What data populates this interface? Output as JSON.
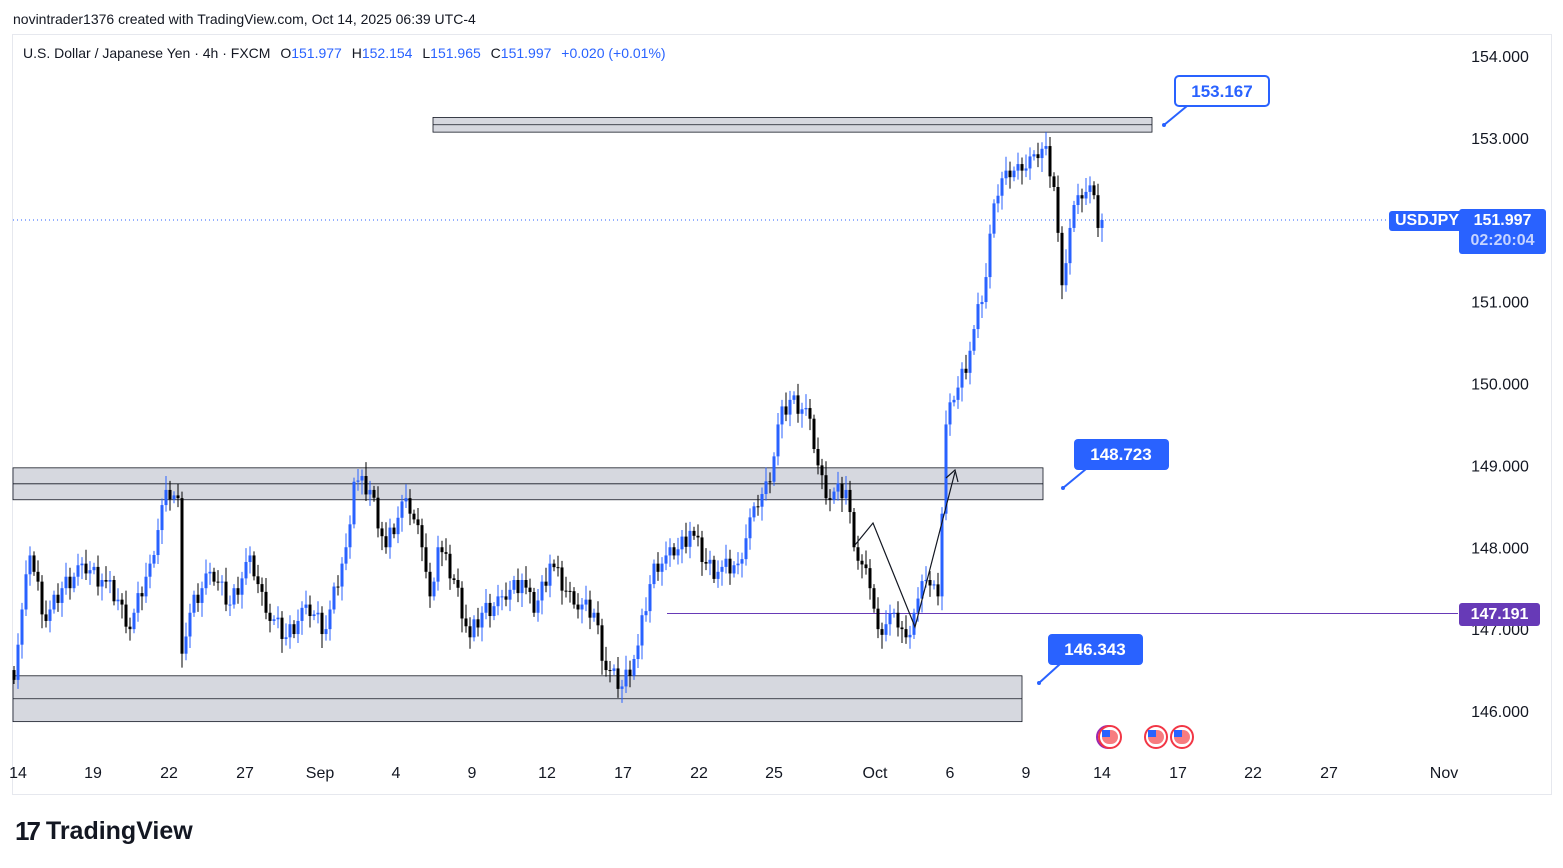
{
  "credit": "novintrader1376 created with TradingView.com, Oct 14, 2025 06:39 UTC-4",
  "legend": {
    "title": "U.S. Dollar / Japanese Yen · 4h · FXCM",
    "o_label": "O",
    "o": "151.977",
    "h_label": "H",
    "h": "152.154",
    "l_label": "L",
    "l": "151.965",
    "c_label": "C",
    "c": "151.997",
    "change": "+0.020 (+0.01%)"
  },
  "symbol_tag": "USDJPY",
  "last_price": "151.997",
  "countdown": "02:20:04",
  "hline_price": "147.191",
  "callouts": [
    "153.167",
    "148.723",
    "146.343"
  ],
  "brand": "TradingView",
  "colors": {
    "up": "#2962ff",
    "down": "#000000",
    "accent": "#2962ff",
    "hline": "#673ab7",
    "zone": "#d1d4dc"
  },
  "chart_data": {
    "type": "candlestick",
    "ylim": [
      145.3,
      154.2
    ],
    "y_ticks": [
      "154.000",
      "153.000",
      "151.000",
      "150.000",
      "149.000",
      "148.000",
      "147.000",
      "146.000"
    ],
    "y_tick_values": [
      154,
      153,
      151,
      150,
      149,
      148,
      147,
      146
    ],
    "x_ticks": [
      "14",
      "19",
      "22",
      "27",
      "Sep",
      "4",
      "9",
      "12",
      "17",
      "22",
      "25",
      "Oct",
      "6",
      "9",
      "14",
      "17",
      "22",
      "27",
      "Nov"
    ],
    "x_tick_bars": [
      1,
      20,
      39,
      58,
      77,
      96,
      115,
      134,
      153,
      172,
      191,
      216,
      235,
      254,
      273,
      292,
      311,
      330,
      359
    ],
    "close_path": [
      [
        0,
        146.5
      ],
      [
        4,
        147.9
      ],
      [
        8,
        147.1
      ],
      [
        12,
        147.5
      ],
      [
        17,
        147.8
      ],
      [
        22,
        147.6
      ],
      [
        27,
        147.3
      ],
      [
        29,
        147.0
      ],
      [
        34,
        147.8
      ],
      [
        38,
        148.7
      ],
      [
        41,
        148.6
      ],
      [
        42,
        146.7
      ],
      [
        44,
        147.2
      ],
      [
        49,
        147.7
      ],
      [
        54,
        147.3
      ],
      [
        59,
        147.9
      ],
      [
        63,
        147.2
      ],
      [
        68,
        146.9
      ],
      [
        73,
        147.3
      ],
      [
        78,
        147.0
      ],
      [
        83,
        148.0
      ],
      [
        85,
        148.8
      ],
      [
        89,
        148.7
      ],
      [
        93,
        148.0
      ],
      [
        98,
        148.6
      ],
      [
        102,
        148.0
      ],
      [
        104,
        147.4
      ],
      [
        106,
        148.0
      ],
      [
        110,
        147.6
      ],
      [
        114,
        146.9
      ],
      [
        117,
        147.2
      ],
      [
        122,
        147.4
      ],
      [
        127,
        147.6
      ],
      [
        130,
        147.2
      ],
      [
        134,
        147.8
      ],
      [
        140,
        147.3
      ],
      [
        145,
        147.2
      ],
      [
        148,
        146.5
      ],
      [
        152,
        146.3
      ],
      [
        156,
        146.8
      ],
      [
        160,
        147.8
      ],
      [
        165,
        147.9
      ],
      [
        169,
        148.2
      ],
      [
        173,
        147.8
      ],
      [
        176,
        147.7
      ],
      [
        181,
        147.8
      ],
      [
        185,
        148.5
      ],
      [
        189,
        148.8
      ],
      [
        191,
        149.5
      ],
      [
        194,
        149.8
      ],
      [
        198,
        149.7
      ],
      [
        200,
        149.2
      ],
      [
        203,
        148.6
      ],
      [
        208,
        148.7
      ],
      [
        210,
        148.0
      ],
      [
        214,
        147.5
      ],
      [
        216,
        147.0
      ],
      [
        220,
        147.2
      ],
      [
        223,
        146.9
      ],
      [
        225,
        147.2
      ],
      [
        228,
        147.6
      ],
      [
        231,
        147.4
      ],
      [
        233,
        149.5
      ],
      [
        235,
        149.8
      ],
      [
        239,
        150.4
      ],
      [
        243,
        151.3
      ],
      [
        245,
        152.2
      ],
      [
        248,
        152.6
      ],
      [
        252,
        152.6
      ],
      [
        255,
        152.8
      ],
      [
        258,
        152.9
      ],
      [
        260,
        152.4
      ],
      [
        262,
        151.2
      ],
      [
        264,
        151.9
      ],
      [
        266,
        152.3
      ],
      [
        270,
        152.3
      ],
      [
        271,
        151.9
      ],
      [
        272,
        151.997
      ]
    ],
    "zones": [
      {
        "top": 153.25,
        "bottom": 153.07,
        "label": "153.167"
      },
      {
        "top": 148.97,
        "bottom": 148.58,
        "label": "148.723"
      },
      {
        "top": 146.43,
        "bottom": 145.87,
        "label": "146.343"
      }
    ],
    "hline": 147.191,
    "last": 151.997
  }
}
